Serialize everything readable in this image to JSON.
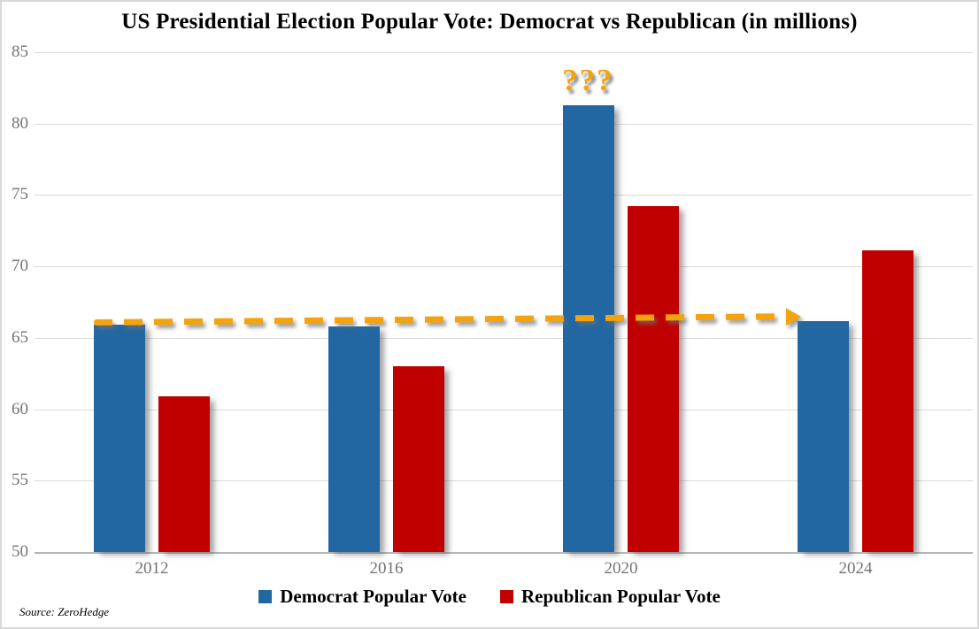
{
  "title": "US Presidential Election Popular Vote: Democrat vs Republican (in millions)",
  "source": "Source: ZeroHedge",
  "colors": {
    "democrat": "#2267a2",
    "republican": "#c00000",
    "arrow": "#f2a30d",
    "gridline": "#d9d9d9",
    "axis_line": "#b7b7b7",
    "tick_label": "#737373",
    "title_text": "#000000"
  },
  "chart_data": {
    "type": "bar",
    "categories": [
      "2012",
      "2016",
      "2020",
      "2024"
    ],
    "series": [
      {
        "name": "Democrat Popular Vote",
        "color_key": "democrat",
        "values": [
          65.9,
          65.8,
          81.3,
          66.2
        ]
      },
      {
        "name": "Republican Popular Vote",
        "color_key": "republican",
        "values": [
          60.9,
          63.0,
          74.2,
          71.1
        ]
      }
    ],
    "ylim": [
      50,
      85
    ],
    "yticks": [
      50,
      55,
      60,
      65,
      70,
      75,
      80,
      85
    ],
    "grid": true,
    "legend_position": "bottom",
    "annotations": [
      {
        "type": "text",
        "text": "???",
        "category": "2020",
        "series": "Democrat Popular Vote",
        "placement": "above-bar"
      },
      {
        "type": "dashed-arrow",
        "from": {
          "category": "2012",
          "value": 65.9
        },
        "to": {
          "category": "2024",
          "value": 66.2
        },
        "meaning": "flat Democrat vote line across elections"
      }
    ]
  }
}
